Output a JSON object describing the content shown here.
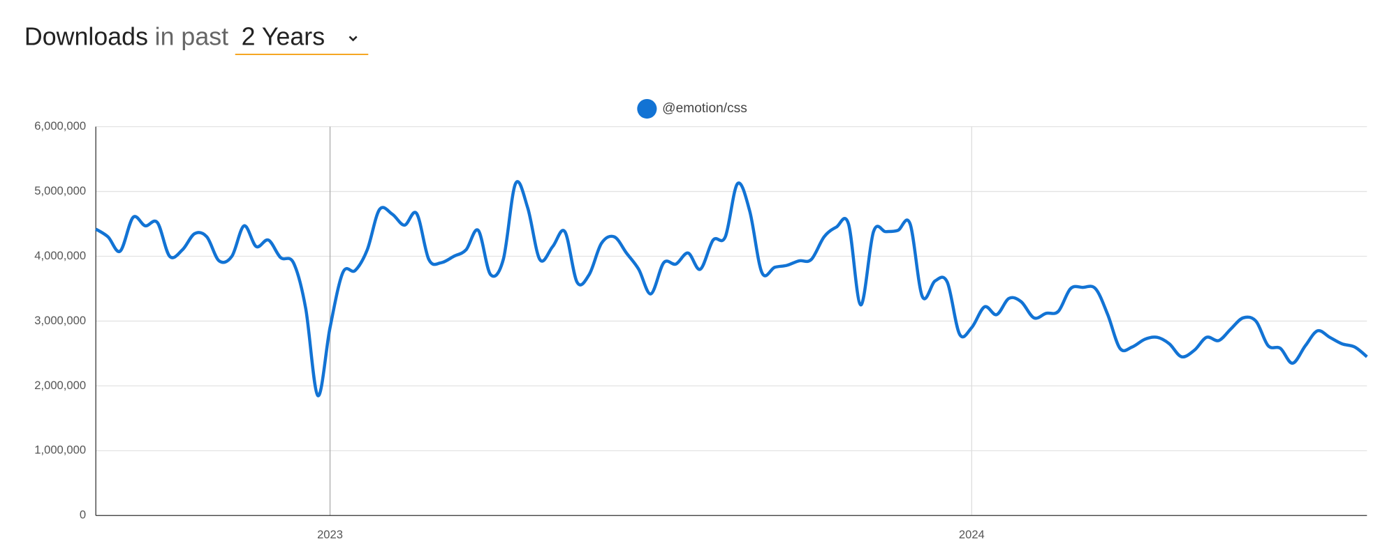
{
  "header": {
    "title": "Downloads",
    "subtitle": "in past",
    "period": "2 Years"
  },
  "chart_data": {
    "type": "line",
    "series": [
      {
        "name": "@emotion/css",
        "color": "#1273d4",
        "values": [
          4420000,
          4300000,
          4080000,
          4600000,
          4470000,
          4520000,
          4000000,
          4100000,
          4350000,
          4300000,
          3930000,
          4000000,
          4470000,
          4150000,
          4250000,
          3980000,
          3900000,
          3200000,
          1850000,
          2900000,
          3750000,
          3780000,
          4100000,
          4720000,
          4650000,
          4480000,
          4660000,
          3950000,
          3900000,
          4000000,
          4100000,
          4400000,
          3720000,
          3950000,
          5120000,
          4750000,
          3950000,
          4150000,
          4380000,
          3600000,
          3720000,
          4200000,
          4300000,
          4050000,
          3800000,
          3420000,
          3900000,
          3880000,
          4050000,
          3800000,
          4250000,
          4300000,
          5120000,
          4700000,
          3750000,
          3830000,
          3860000,
          3930000,
          3950000,
          4300000,
          4450000,
          4500000,
          3250000,
          4380000,
          4380000,
          4400000,
          4500000,
          3380000,
          3620000,
          3600000,
          2800000,
          2900000,
          3220000,
          3100000,
          3350000,
          3300000,
          3050000,
          3120000,
          3150000,
          3500000,
          3520000,
          3500000,
          3100000,
          2580000,
          2600000,
          2720000,
          2750000,
          2650000,
          2450000,
          2550000,
          2750000,
          2700000,
          2880000,
          3050000,
          3000000,
          2620000,
          2580000,
          2350000,
          2620000,
          2850000,
          2750000,
          2650000,
          2600000,
          2450000
        ]
      }
    ],
    "x": [
      2022.635,
      2022.654,
      2022.673,
      2022.693,
      2022.712,
      2022.731,
      2022.75,
      2022.77,
      2022.789,
      2022.808,
      2022.827,
      2022.847,
      2022.866,
      2022.885,
      2022.904,
      2022.923,
      2022.943,
      2022.962,
      2022.981,
      2023.0,
      2023.02,
      2023.039,
      2023.058,
      2023.077,
      2023.097,
      2023.116,
      2023.135,
      2023.154,
      2023.173,
      2023.193,
      2023.212,
      2023.231,
      2023.25,
      2023.27,
      2023.289,
      2023.308,
      2023.327,
      2023.347,
      2023.366,
      2023.385,
      2023.404,
      2023.423,
      2023.443,
      2023.462,
      2023.481,
      2023.5,
      2023.52,
      2023.539,
      2023.558,
      2023.577,
      2023.597,
      2023.616,
      2023.635,
      2023.654,
      2023.673,
      2023.693,
      2023.712,
      2023.731,
      2023.75,
      2023.77,
      2023.789,
      2023.808,
      2023.827,
      2023.847,
      2023.866,
      2023.885,
      2023.904,
      2023.923,
      2023.943,
      2023.962,
      2023.981,
      2024.0,
      2024.02,
      2024.039,
      2024.058,
      2024.077,
      2024.097,
      2024.116,
      2024.135,
      2024.154,
      2024.173,
      2024.193,
      2024.212,
      2024.231,
      2024.25,
      2024.27,
      2024.289,
      2024.308,
      2024.327,
      2024.347,
      2024.366,
      2024.385,
      2024.404,
      2024.423,
      2024.443,
      2024.462,
      2024.481,
      2024.5,
      2024.52,
      2024.539,
      2024.558,
      2024.577,
      2024.597,
      2024.616
    ],
    "xlim": [
      2022.635,
      2024.616
    ],
    "xticks": [
      2023,
      2024
    ],
    "ylim": [
      0,
      6000000
    ],
    "yticks": [
      0,
      {
        "value": 1000000,
        "label": "1,000,000"
      },
      {
        "value": 2000000,
        "label": "2,000,000"
      },
      {
        "value": 3000000,
        "label": "3,000,000"
      },
      {
        "value": 4000000,
        "label": "4,000,000"
      },
      {
        "value": 5000000,
        "label": "5,000,000"
      },
      {
        "value": 6000000,
        "label": "6,000,000"
      }
    ],
    "grid": true,
    "legend": "top"
  }
}
